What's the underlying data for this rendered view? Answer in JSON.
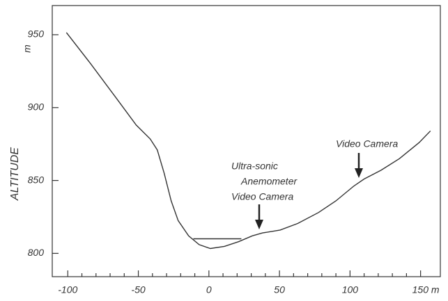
{
  "chart_data": {
    "type": "line",
    "y_label": "ALTITUDE",
    "y_unit": "m",
    "x": [
      -101,
      -83.7,
      -66,
      -51.5,
      -41.6,
      -36.6,
      -31.7,
      -26.7,
      -21.8,
      -14.4,
      -6.9,
      1,
      11,
      21,
      30.7,
      38,
      50.5,
      62.9,
      77.7,
      90,
      102.5,
      110,
      122,
      135,
      149,
      157
    ],
    "values": [
      951.5,
      930,
      907,
      888,
      878.5,
      871,
      855,
      836,
      822.5,
      812,
      806,
      803.3,
      804.8,
      808,
      812,
      814,
      816,
      820.5,
      828,
      836,
      846,
      851,
      857,
      865,
      876,
      884
    ],
    "water_level": {
      "x": [
        -11,
        23
      ],
      "values": [
        810,
        810
      ]
    },
    "color": "#333333",
    "xlim": [
      -111,
      164
    ],
    "ylim": [
      784,
      970
    ],
    "xticks": [
      -100,
      -50,
      0,
      50,
      100,
      {
        "value": 150,
        "label": "150 m"
      }
    ],
    "xticks_minor": [
      -90,
      -80,
      -70,
      -60,
      -40,
      -30,
      -20,
      -10,
      10,
      20,
      30,
      40,
      60,
      70,
      80,
      90,
      110,
      120,
      130,
      140
    ],
    "yticks": [
      800,
      850,
      900,
      950
    ],
    "annotations": [
      "Ultra-sonic",
      "Anemometer",
      "Video Camera",
      "Video Camera"
    ]
  }
}
